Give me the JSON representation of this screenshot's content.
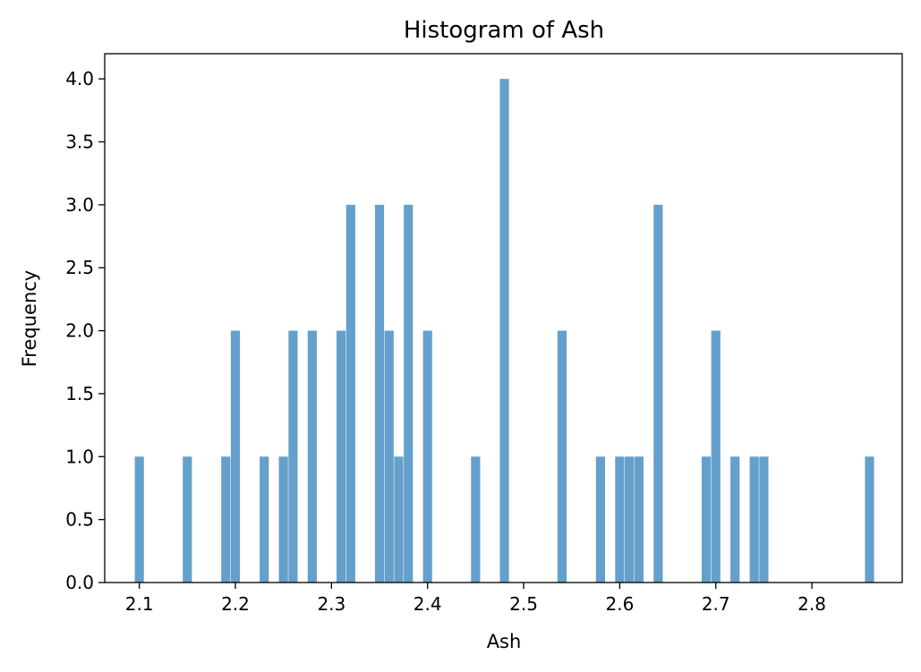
{
  "chart_data": {
    "type": "bar",
    "title": "Histogram of Ash",
    "xlabel": "Ash",
    "ylabel": "Frequency",
    "xlim": [
      2.064,
      2.894
    ],
    "ylim": [
      0,
      4.2
    ],
    "xticks": [
      2.1,
      2.2,
      2.3,
      2.4,
      2.5,
      2.6,
      2.7,
      2.8
    ],
    "xtick_labels": [
      "2.1",
      "2.2",
      "2.3",
      "2.4",
      "2.5",
      "2.6",
      "2.7",
      "2.8"
    ],
    "yticks": [
      0,
      0.5,
      1,
      1.5,
      2,
      2.5,
      3,
      3.5,
      4
    ],
    "ytick_labels": [
      "0.0",
      "0.5",
      "1.0",
      "1.5",
      "2.0",
      "2.5",
      "3.0",
      "3.5",
      "4.0"
    ],
    "bin_width": 0.0095,
    "bar_color": "#64a0cb",
    "grid": false,
    "bins": [
      {
        "x": 2.1,
        "count": 1
      },
      {
        "x": 2.15,
        "count": 1
      },
      {
        "x": 2.19,
        "count": 1
      },
      {
        "x": 2.2,
        "count": 2
      },
      {
        "x": 2.23,
        "count": 1
      },
      {
        "x": 2.25,
        "count": 1
      },
      {
        "x": 2.26,
        "count": 2
      },
      {
        "x": 2.28,
        "count": 2
      },
      {
        "x": 2.31,
        "count": 2
      },
      {
        "x": 2.32,
        "count": 3
      },
      {
        "x": 2.35,
        "count": 3
      },
      {
        "x": 2.36,
        "count": 2
      },
      {
        "x": 2.37,
        "count": 1
      },
      {
        "x": 2.38,
        "count": 3
      },
      {
        "x": 2.4,
        "count": 2
      },
      {
        "x": 2.45,
        "count": 1
      },
      {
        "x": 2.48,
        "count": 4
      },
      {
        "x": 2.54,
        "count": 2
      },
      {
        "x": 2.58,
        "count": 1
      },
      {
        "x": 2.6,
        "count": 1
      },
      {
        "x": 2.61,
        "count": 1
      },
      {
        "x": 2.62,
        "count": 1
      },
      {
        "x": 2.64,
        "count": 3
      },
      {
        "x": 2.69,
        "count": 1
      },
      {
        "x": 2.7,
        "count": 2
      },
      {
        "x": 2.72,
        "count": 1
      },
      {
        "x": 2.74,
        "count": 1
      },
      {
        "x": 2.75,
        "count": 1
      },
      {
        "x": 2.86,
        "count": 1
      }
    ]
  }
}
